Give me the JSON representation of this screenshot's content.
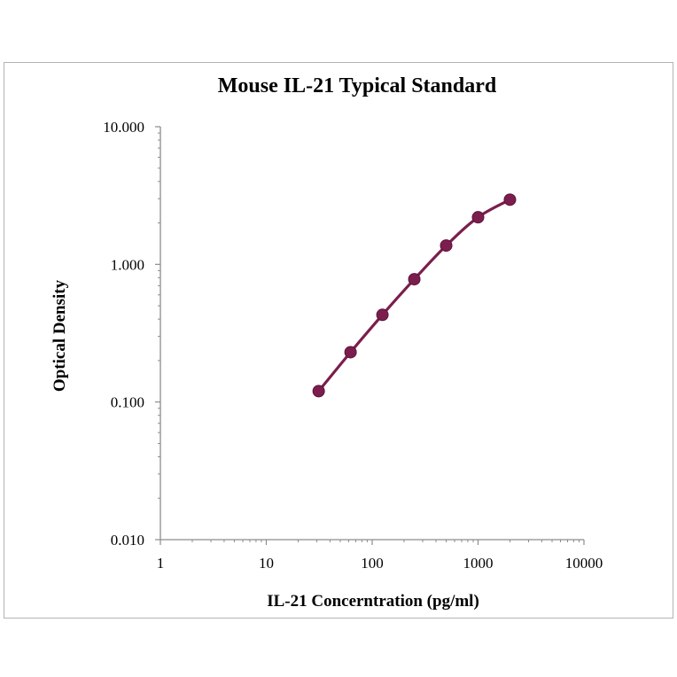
{
  "chart_data": {
    "type": "line",
    "title": "Mouse IL-21 Typical Standard",
    "xlabel": "IL-21 Concerntration (pg/ml)",
    "ylabel": "Optical Density",
    "x_scale": "log",
    "y_scale": "log",
    "xlim": [
      1,
      10000
    ],
    "ylim": [
      0.01,
      10
    ],
    "x_ticks": [
      1,
      10,
      100,
      1000,
      10000
    ],
    "x_tick_labels": [
      "1",
      "10",
      "100",
      "1000",
      "10000"
    ],
    "y_ticks": [
      0.01,
      0.1,
      1,
      10
    ],
    "y_tick_labels": [
      "0.010",
      "0.100",
      "1.000",
      "10.000"
    ],
    "grid": false,
    "legend": "none",
    "series": [
      {
        "x": [
          31.25,
          62.5,
          125,
          250,
          500,
          1000,
          2000
        ],
        "y": [
          0.12,
          0.23,
          0.43,
          0.78,
          1.37,
          2.2,
          2.95
        ],
        "color": "#7b1e4e"
      }
    ]
  }
}
